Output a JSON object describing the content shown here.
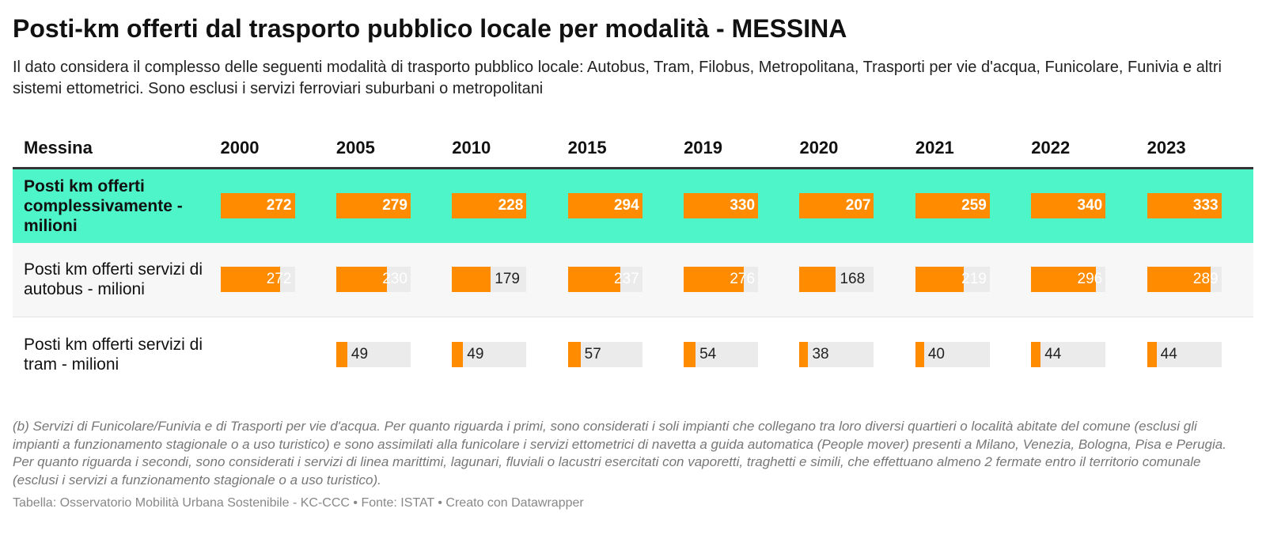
{
  "title": "Posti-km offerti dal trasporto pubblico locale per modalità - MESSINA",
  "subtitle": "Il dato considera il complesso delle seguenti modalità di trasporto pubblico locale: Autobus, Tram, Filobus, Metropolitana, Trasporti per vie d'acqua, Funicolare, Funivia e altri sistemi ettometrici. Sono esclusi i servizi ferroviari suburbani o metropolitani",
  "notes": "(b) Servizi di Funicolare/Funivia e di Trasporti per vie d'acqua. Per quanto riguarda i primi, sono considerati i soli impianti che collegano tra loro diversi quartieri o località abitate del comune (esclusi gli impianti a funzionamento stagionale o a uso turistico) e sono assimilati alla funicolare i servizi ettometrici di navetta a guida automatica (People mover) presenti a Milano, Venezia, Bologna, Pisa e Perugia. Per quanto riguarda i secondi, sono considerati i servizi di linea marittimi, lagunari, fluviali o lacustri esercitati con vaporetti, traghetti e simili, che effettuano almeno 2 fermate entro il territorio comunale (esclusi i servizi a funzionamento stagionale o a uso turistico).",
  "footer": "Tabella: Osservatorio Mobilità Urbana Sostenibile - KC-CCC • Fonte: ISTAT • Creato con Datawrapper",
  "colors": {
    "bar": "#ff8c00",
    "track": "#ebebeb",
    "highlight_row": "#4ef5c8"
  },
  "chart_data": {
    "type": "table",
    "first_column_header": "Messina",
    "categories": [
      "2000",
      "2005",
      "2010",
      "2015",
      "2019",
      "2020",
      "2021",
      "2022",
      "2023"
    ],
    "bar_scale_max": 340,
    "series": [
      {
        "name": "Posti km offerti complessivamente -milioni",
        "values": [
          272,
          279,
          228,
          294,
          330,
          207,
          259,
          340,
          333
        ],
        "highlight": true
      },
      {
        "name": "Posti km offerti servizi di autobus - milioni",
        "values": [
          272,
          230,
          179,
          237,
          276,
          168,
          219,
          296,
          289
        ],
        "highlight": false
      },
      {
        "name": "Posti km offerti servizi di tram - milioni",
        "values": [
          null,
          49,
          49,
          57,
          54,
          38,
          40,
          44,
          44
        ],
        "highlight": false
      }
    ]
  }
}
